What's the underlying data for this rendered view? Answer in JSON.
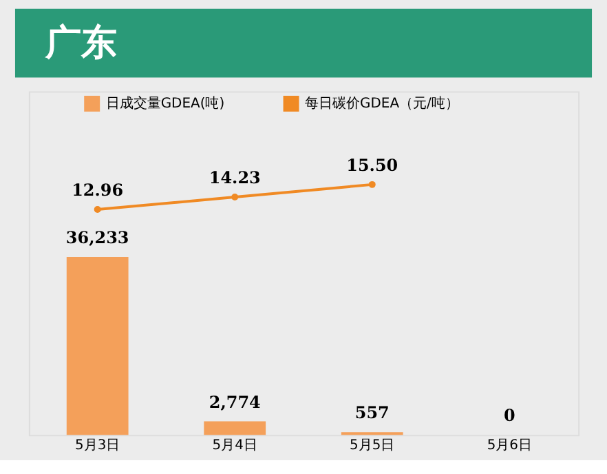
{
  "chart_data": {
    "type": "bar",
    "title": "广东",
    "categories": [
      "5月3日",
      "5月4日",
      "5月5日",
      "5月6日"
    ],
    "series": [
      {
        "name": "日成交量GDEA(吨)",
        "color": "#f4a05a",
        "values": [
          36233,
          2774,
          557,
          0
        ],
        "value_labels": [
          "36,233",
          "2,774",
          "557",
          "0"
        ]
      },
      {
        "name": "每日碳价GDEA（元/吨）",
        "type": "line",
        "axis": "y2",
        "color": "#f08a24",
        "marker": "circle",
        "values": [
          12.96,
          14.23,
          15.5,
          null
        ],
        "value_labels": [
          "12.96",
          "14.23",
          "15.50",
          null
        ]
      }
    ],
    "ylim": [
      0,
      70000
    ],
    "y2lim": [
      -10,
      25
    ],
    "legend": "top",
    "grid": false
  }
}
